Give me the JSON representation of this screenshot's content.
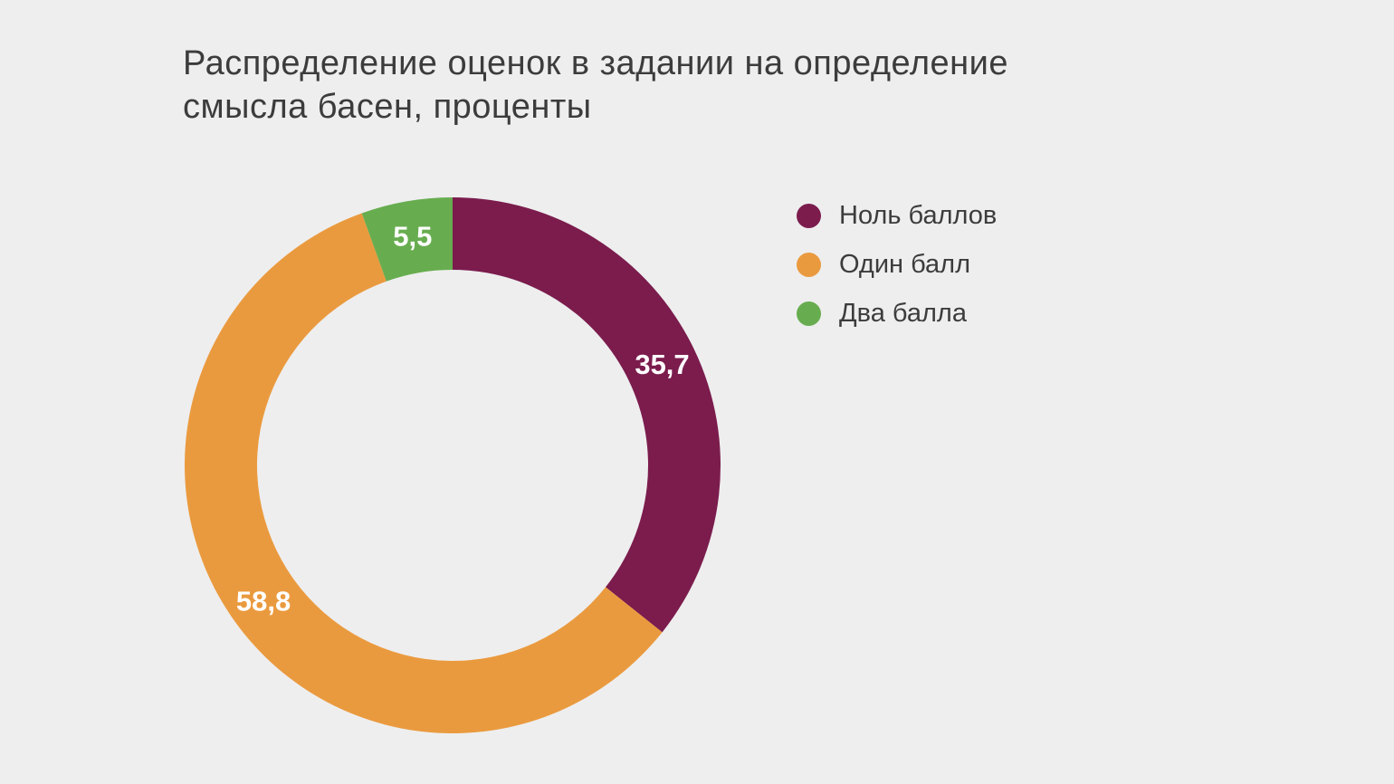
{
  "title": {
    "text": "Распределение оценок в задании на определение смысла басен, проценты",
    "lines": [
      "Распределение оценок в задании на определение",
      "смысла басен, проценты"
    ]
  },
  "colors": {
    "background": "#eeeeee",
    "title_text": "#3c3c3c",
    "value_label_text": "#ffffff"
  },
  "legend": {
    "position": "right",
    "items": [
      {
        "label": "Ноль баллов",
        "color": "#7b1c4d"
      },
      {
        "label": "Один балл",
        "color": "#ea9a3e"
      },
      {
        "label": "Два балла",
        "color": "#67ad4f"
      }
    ]
  },
  "chart_data": {
    "type": "pie",
    "subtype": "donut",
    "title": "Распределение оценок в задании на определение смысла басен, проценты",
    "categories": [
      "Ноль баллов",
      "Один балл",
      "Два балла"
    ],
    "values": [
      35.7,
      58.8,
      5.5
    ],
    "value_labels": [
      "35,7",
      "58,8",
      "5,5"
    ],
    "colors": [
      "#7b1c4d",
      "#ea9a3e",
      "#67ad4f"
    ],
    "unit": "проценты",
    "total": 100.0,
    "start_angle_deg": 0,
    "direction": "clockwise",
    "legend_position": "right",
    "grid": false
  }
}
